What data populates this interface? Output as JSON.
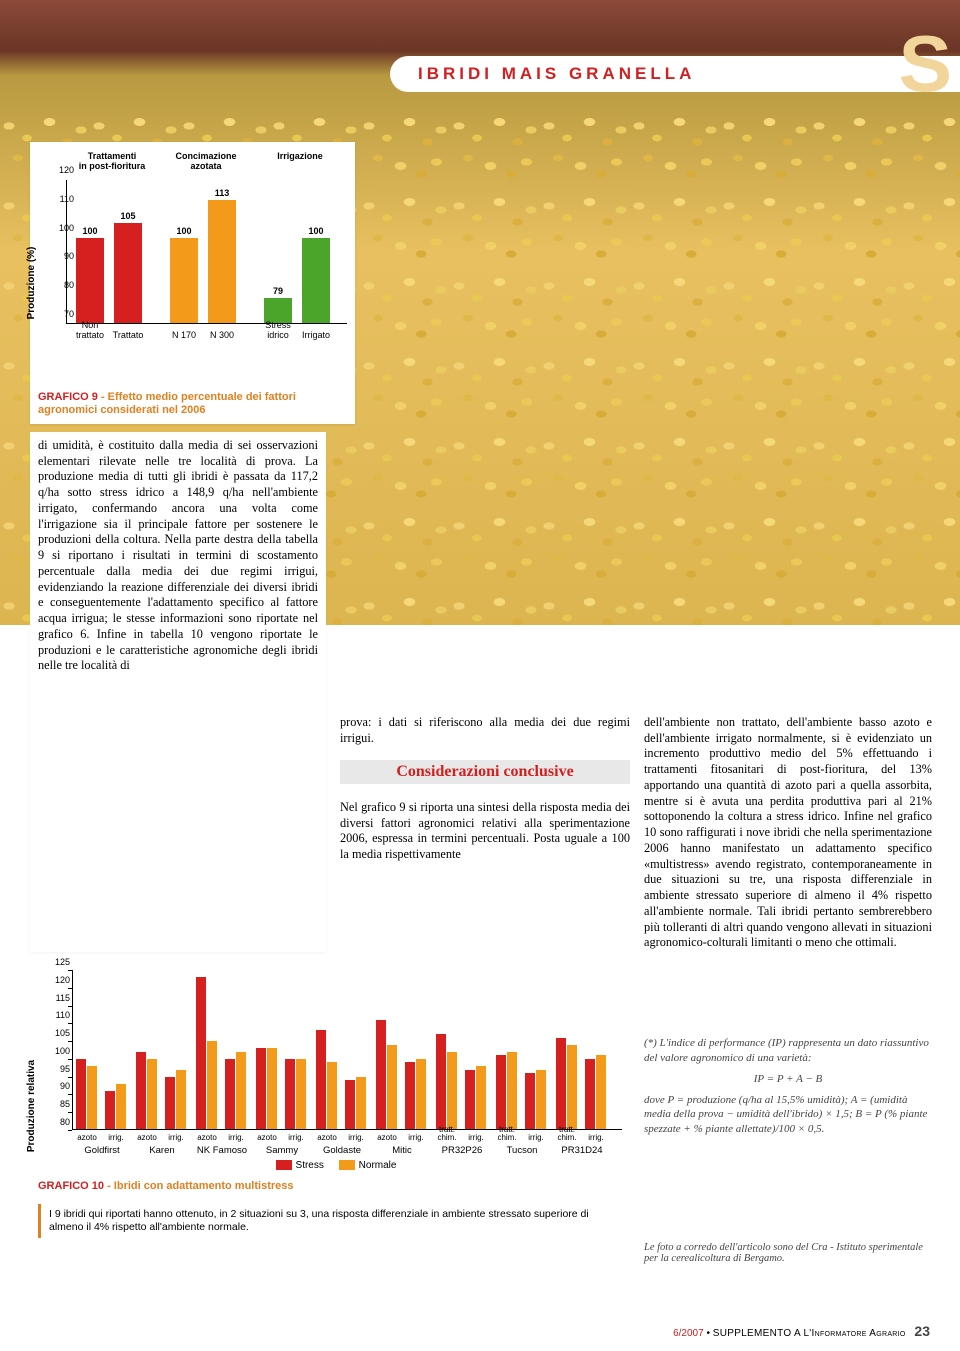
{
  "header": {
    "title": "IBRIDI MAIS GRANELLA",
    "badge": "S"
  },
  "chart1": {
    "type": "bar",
    "ylabel": "Produzione (%)",
    "ylim": [
      70,
      120
    ],
    "ytick_step": 10,
    "group_labels": [
      "Trattamenti\nin post-fioritura",
      "Concimazione\nazotata",
      "Irrigazione"
    ],
    "bars": [
      {
        "x": "Non\ntrattato",
        "value": 100,
        "color": "#d62020"
      },
      {
        "x": "Trattato",
        "value": 105,
        "color": "#d62020"
      },
      {
        "x": "N 170",
        "value": 100,
        "color": "#f39a1a"
      },
      {
        "x": "N 300",
        "value": 113,
        "color": "#f39a1a"
      },
      {
        "x": "Stress\nidrico",
        "value": 79,
        "color": "#4aa52a"
      },
      {
        "x": "Irrigato",
        "value": 100,
        "color": "#4aa52a"
      }
    ],
    "caption_num": "GRAFICO 9",
    "caption_title": " - Effetto medio percentuale dei fattori agronomici considerati nel 2006"
  },
  "body1": "di umidità, è costituito dalla media di sei osservazioni elementari rilevate nelle tre località di prova. La produzione media di tutti gli ibridi è passata da 117,2 q/ha sotto stress idrico a 148,9 q/ha nell'ambiente irrigato, confermando ancora una volta come l'irrigazione sia il principale fattore per sostenere le produzioni della coltura. Nella parte destra della tabella 9 si riportano i risultati in termini di scostamento percentuale dalla media dei due regimi irrigui, evidenziando la reazione differenziale dei diversi ibridi e conseguentemente l'adattamento specifico al fattore acqua irrigua; le stesse informazioni sono riportate nel grafico 6. Infine in tabella 10 vengono riportate le produzioni e le caratteristiche agronomiche degli ibridi nelle tre località di",
  "col2_p1": "prova: i dati si riferiscono alla media dei due regimi irrigui.",
  "col2_heading": "Considerazioni conclusive",
  "col2_p2": "Nel grafico 9 si riporta una sintesi della risposta media dei diversi fattori agronomici relativi alla sperimentazione 2006, espressa in termini percentuali. Posta uguale a 100 la media rispettivamente",
  "col3_p1": "dell'ambiente non trattato, dell'ambiente basso azoto e dell'ambiente irrigato normalmente, si è evidenziato un incremento produttivo medio del 5% effettuando i trattamenti fitosanitari di post-fioritura, del 13% apportando una quantità di azoto pari a quella assorbita, mentre si è avuta una perdita produttiva pari al 21% sottoponendo la coltura a stress idrico. Infine nel grafico 10 sono raffigurati i nove ibridi che nella sperimentazione 2006 hanno manifestato un adattamento specifico «multistress» avendo registrato, contemporaneamente in due situazioni su tre, una risposta differenziale in ambiente stressato superiore di almeno il 4% rispetto all'ambiente normale. Tali ibridi pertanto sembrerebbero più tolleranti di altri quando vengono allevati in situazioni agronomico-colturali limitanti o meno che ottimali.",
  "col3_note_p1": "(*) L'indice di performance (IP) rappresenta un dato riassuntivo del valore agronomico di una varietà:",
  "col3_formula": "IP = P + A − B",
  "col3_note_p2": "dove P = produzione (q/ha al 15,5% umidità); A = (umidità media della prova − umidità dell'ibrido) × 1,5; B = P (% piante spezzate + % piante allettate)/100 × 0,5.",
  "col3_credit": "Le foto a corredo dell'articolo sono del Cra - Istituto sperimentale per la cerealicoltura di Bergamo.",
  "chart2": {
    "type": "grouped-bar",
    "ylabel": "Produzione relativa",
    "ylim": [
      80,
      125
    ],
    "ytick_step": 5,
    "colors": {
      "stress": "#d62020",
      "normal": "#f39a1a"
    },
    "legend": {
      "stress": "Stress",
      "normal": "Normale"
    },
    "hybrids": [
      {
        "name": "Goldfirst",
        "sub": [
          "azoto",
          "irrig."
        ],
        "vals": [
          [
            100,
            98
          ],
          [
            91,
            93
          ]
        ]
      },
      {
        "name": "Karen",
        "sub": [
          "azoto",
          "irrig."
        ],
        "vals": [
          [
            102,
            100
          ],
          [
            95,
            97
          ]
        ]
      },
      {
        "name": "NK Famoso",
        "sub": [
          "azoto",
          "irrig."
        ],
        "vals": [
          [
            123,
            105
          ],
          [
            100,
            102
          ]
        ]
      },
      {
        "name": "Sammy",
        "sub": [
          "azoto",
          "irrig."
        ],
        "vals": [
          [
            103,
            103
          ],
          [
            100,
            100
          ]
        ]
      },
      {
        "name": "Goldaste",
        "sub": [
          "azoto",
          "irrig."
        ],
        "vals": [
          [
            108,
            99
          ],
          [
            94,
            95
          ]
        ]
      },
      {
        "name": "Mitic",
        "sub": [
          "azoto",
          "irrig."
        ],
        "vals": [
          [
            111,
            104
          ],
          [
            99,
            100
          ]
        ]
      },
      {
        "name": "PR32P26",
        "sub": [
          "tratt. chim.",
          "irrig."
        ],
        "vals": [
          [
            107,
            102
          ],
          [
            97,
            98
          ]
        ]
      },
      {
        "name": "Tucson",
        "sub": [
          "tratt. chim.",
          "irrig."
        ],
        "vals": [
          [
            101,
            102
          ],
          [
            96,
            97
          ]
        ]
      },
      {
        "name": "PR31D24",
        "sub": [
          "tratt. chim.",
          "irrig."
        ],
        "vals": [
          [
            106,
            104
          ],
          [
            100,
            101
          ]
        ]
      }
    ],
    "caption_num": "GRAFICO 10",
    "caption_title": " - Ibridi con adattamento multistress",
    "note": "I 9 ibridi qui riportati hanno ottenuto, in 2 situazioni su 3, una risposta differenziale in ambiente stressato superiore di almeno il 4% rispetto all'ambiente normale."
  },
  "footer": {
    "issue": "6/2007",
    "text": "SUPPLEMENTO A L'Informatore Agrario",
    "page": "23"
  }
}
